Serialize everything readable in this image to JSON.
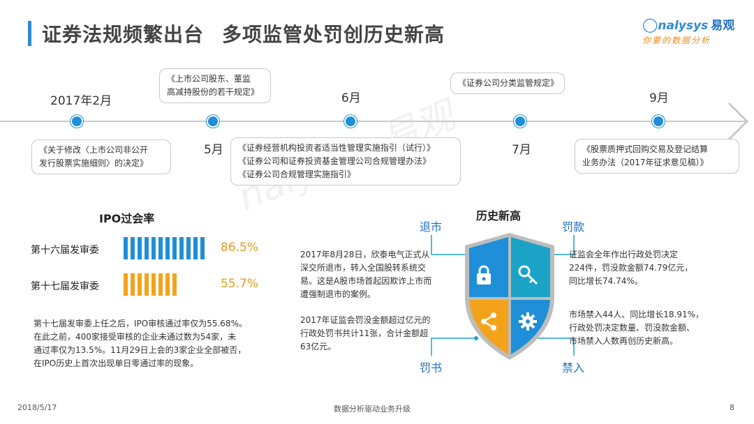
{
  "header": {
    "title_part1": "证券法规频繁出台",
    "title_part2": "多项监管处罚创历史新高",
    "logo_text": "nalysys",
    "logo_cn": "易观",
    "logo_slogan": "你要的数据分析"
  },
  "timeline": {
    "labels": [
      "2017年2月",
      "5月",
      "6月",
      "7月",
      "9月"
    ],
    "callouts": [
      "《关于修改〈上市公司非公开\n发行股票实施细则〉的决定》",
      "《上市公司股东、董监\n高减持股份的若干规定》",
      "《证券经营机构投资者适当性管理实施指引（试行）》\n《证券公司和证券投资基金管理公司合规管理办法》\n《证券公司合规管理实施指引》",
      "《证券公司分类监管规定》",
      "《股票质押式回购交易及登记结算\n业务办法（2017年征求意见稿）》"
    ]
  },
  "ipo": {
    "title": "IPO过会率",
    "rows": [
      {
        "label": "第十六届发审委",
        "value": "86.5%",
        "color": "#1e8fd8"
      },
      {
        "label": "第十七届发审委",
        "value": "55.7%",
        "color": "#f5a21b"
      }
    ],
    "description": "第十七届发审委上任之后，IPO审核通过率仅为55.68%。\n在此之前，400家接受审核的企业未通过数为54家，未\n通过率仅为13.5%。11月29日上会的3家企业全部被否，\n在IPO历史上首次出现单日零通过率的现象。"
  },
  "history": {
    "title": "历史新高",
    "labels": {
      "delist": "退市",
      "fine": "罚款",
      "decision": "罚书",
      "ban": "禁入"
    },
    "delist_text": "2017年8月28日，欣泰电气正式从\n深交所退市，转入全国股转系统交\n易。这是A股市场首起因欺诈上市而\n遭强制退市的案例。",
    "decision_text": "2017年证监会罚没金额超过亿元的\n行政处罚书共计11张，合计金额超\n63亿元。",
    "fine_text": "证监会全年作出行政处罚决定\n224件，罚没款金额74.79亿元，\n同比增长74.74%。",
    "ban_text": "市场禁入44人、同比增长18.91%，\n行政处罚决定数量、罚没款金额、\n市场禁入人数再创历史新高。"
  },
  "footer": {
    "date": "2018/5/17",
    "center": "数据分析驱动业务升级",
    "page": "8"
  },
  "colors": {
    "blue": "#1e8fd8",
    "orange": "#f5a21b",
    "teal": "#1aa3c7"
  }
}
